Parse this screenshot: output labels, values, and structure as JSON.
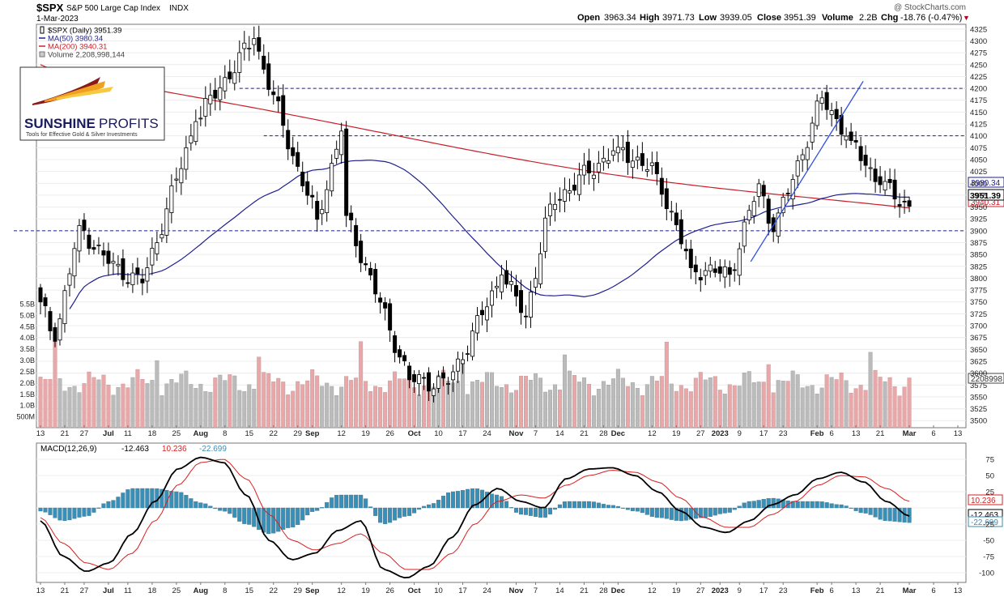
{
  "header": {
    "symbol": "$SPX",
    "description": "S&P 500 Large Cap Index",
    "exchange": "INDX",
    "date": "1-Mar-2023",
    "copyright": "@ StockCharts.com",
    "open_label": "Open",
    "open": "3963.34",
    "high_label": "High",
    "high": "3971.73",
    "low_label": "Low",
    "low": "3939.05",
    "close_label": "Close",
    "close": "3951.39",
    "volume_label": "Volume",
    "volume": "2.2B",
    "chg_label": "Chg",
    "chg": "-18.76 (-0.47%)",
    "chg_marker": "▼"
  },
  "legend": [
    {
      "text": "$SPX (Daily) 3951.39",
      "color": "#000000",
      "swatch": "candle"
    },
    {
      "text": "MA(50) 3980.34",
      "color": "#1f1f8f",
      "swatch": "line"
    },
    {
      "text": "MA(200) 3940.31",
      "color": "#c8202a",
      "swatch": "line"
    },
    {
      "text": "Volume 2,208,998,144",
      "color": "#444444",
      "swatch": "box"
    }
  ],
  "logo": {
    "name": "SUNSHINE",
    "name2": "PROFITS",
    "tagline": "Tools for Effective Gold & Silver Investments"
  },
  "price_tags": {
    "ma50": "3980.34",
    "ma200": "3940.31",
    "close": "3951.39",
    "volume": "2208998"
  },
  "macd": {
    "label": "MACD(12,26,9)",
    "macd_value": "-12.463",
    "signal_value": "10.236",
    "hist_value": "-22.699",
    "tags": {
      "signal": "10.236",
      "macd": "-12.463",
      "hist": "-22.699"
    }
  },
  "colors": {
    "macd_line": "#000000",
    "signal_line": "#d62020",
    "histogram": "#3a8fb7",
    "ma50": "#1f1f8f",
    "ma200": "#c8202a",
    "hline": "#1f1f8f",
    "trendline": "#2e4de0",
    "vol_up": "#bbbbbb",
    "vol_down": "#e8a8aa"
  },
  "chart_data": [
    {
      "type": "candlestick",
      "title": "$SPX S&P 500 Large Cap Index INDX",
      "ylim": [
        3485,
        4335
      ],
      "y_ticks": [
        3500,
        3525,
        3550,
        3575,
        3600,
        3625,
        3650,
        3675,
        3700,
        3725,
        3750,
        3775,
        3800,
        3825,
        3850,
        3875,
        3900,
        3925,
        3950,
        3975,
        4000,
        4025,
        4050,
        4075,
        4100,
        4125,
        4150,
        4175,
        4200,
        4225,
        4250,
        4275,
        4300,
        4325
      ],
      "x_ticks": [
        "13",
        "21",
        "27",
        "Jul",
        "11",
        "18",
        "25",
        "Aug",
        "8",
        "15",
        "22",
        "29",
        "Sep",
        "12",
        "19",
        "26",
        "Oct",
        "10",
        "17",
        "24",
        "Nov",
        "7",
        "14",
        "21",
        "28",
        "Dec",
        "12",
        "19",
        "27",
        "2023",
        "9",
        "17",
        "23",
        "Feb",
        "6",
        "13",
        "21",
        "Mar",
        "6",
        "13"
      ],
      "x_ticks_bold": [
        "Jul",
        "Aug",
        "Sep",
        "Oct",
        "Nov",
        "Dec",
        "2023",
        "Feb",
        "Mar"
      ],
      "horizontal_levels": [
        3900,
        4100,
        4200
      ],
      "close_key_points": [
        {
          "date": "Jun 13",
          "close": 3750
        },
        {
          "date": "Jun 16",
          "close": 3667
        },
        {
          "date": "Jun 24",
          "close": 3911
        },
        {
          "date": "Jul 5",
          "close": 3831
        },
        {
          "date": "Jul 14",
          "close": 3790
        },
        {
          "date": "Jul 29",
          "close": 4130
        },
        {
          "date": "Aug 16",
          "close": 4305
        },
        {
          "date": "Aug 26",
          "close": 4058
        },
        {
          "date": "Sep 2",
          "close": 3924
        },
        {
          "date": "Sep 12",
          "close": 4110
        },
        {
          "date": "Sep 13",
          "close": 3932
        },
        {
          "date": "Sep 30",
          "close": 3586
        },
        {
          "date": "Oct 12",
          "close": 3578
        },
        {
          "date": "Oct 27",
          "close": 3807
        },
        {
          "date": "Nov 3",
          "close": 3720
        },
        {
          "date": "Nov 10",
          "close": 3956
        },
        {
          "date": "Dec 1",
          "close": 4076
        },
        {
          "date": "Dec 13",
          "close": 4020
        },
        {
          "date": "Dec 22",
          "close": 3822
        },
        {
          "date": "Jan 5",
          "close": 3808
        },
        {
          "date": "Jan 13",
          "close": 3999
        },
        {
          "date": "Jan 19",
          "close": 3898
        },
        {
          "date": "Feb 2",
          "close": 4180
        },
        {
          "date": "Feb 10",
          "close": 4090
        },
        {
          "date": "Feb 21",
          "close": 3997
        },
        {
          "date": "Mar 1",
          "close": 3951.39
        }
      ],
      "ma50_values": [
        3980.34
      ],
      "ma200_values": [
        3940.31
      ],
      "volume_ylim_B": [
        0,
        6.0
      ],
      "volume_ticks": [
        "500M",
        "1.0B",
        "1.5B",
        "2.0B",
        "2.5B",
        "3.0B",
        "3.5B",
        "4.0B",
        "4.5B",
        "5.0B",
        "5.5B"
      ],
      "volume_last": 2208998144
    },
    {
      "type": "line",
      "title": "MACD(12,26,9)",
      "ylim": [
        -115,
        100
      ],
      "y_ticks": [
        -100,
        -75,
        -50,
        -25,
        0,
        25,
        50,
        75
      ],
      "series": [
        {
          "name": "MACD",
          "key_points": [
            -20,
            -75,
            -98,
            -85,
            -40,
            10,
            60,
            78,
            70,
            20,
            -50,
            -80,
            -70,
            -35,
            -20,
            -95,
            -108,
            -90,
            -45,
            5,
            30,
            10,
            0,
            45,
            60,
            62,
            50,
            25,
            -5,
            -30,
            -38,
            -20,
            5,
            20,
            45,
            55,
            40,
            10,
            -12.463
          ]
        },
        {
          "name": "Signal",
          "key_points": [
            -15,
            -55,
            -85,
            -95,
            -70,
            -20,
            35,
            70,
            75,
            45,
            -10,
            -50,
            -65,
            -55,
            -40,
            -70,
            -95,
            -95,
            -70,
            -25,
            10,
            20,
            15,
            35,
            50,
            58,
            55,
            40,
            15,
            -15,
            -30,
            -30,
            -10,
            10,
            35,
            50,
            48,
            30,
            10.236
          ]
        },
        {
          "name": "Histogram",
          "key_points": [
            -5,
            -20,
            -13,
            10,
            30,
            30,
            25,
            8,
            -5,
            -25,
            -40,
            -30,
            -5,
            20,
            20,
            -25,
            -13,
            5,
            25,
            30,
            20,
            -10,
            -15,
            10,
            10,
            4,
            -5,
            -15,
            -20,
            -15,
            -8,
            10,
            15,
            10,
            10,
            5,
            -8,
            -20,
            -22.699
          ]
        }
      ]
    }
  ]
}
